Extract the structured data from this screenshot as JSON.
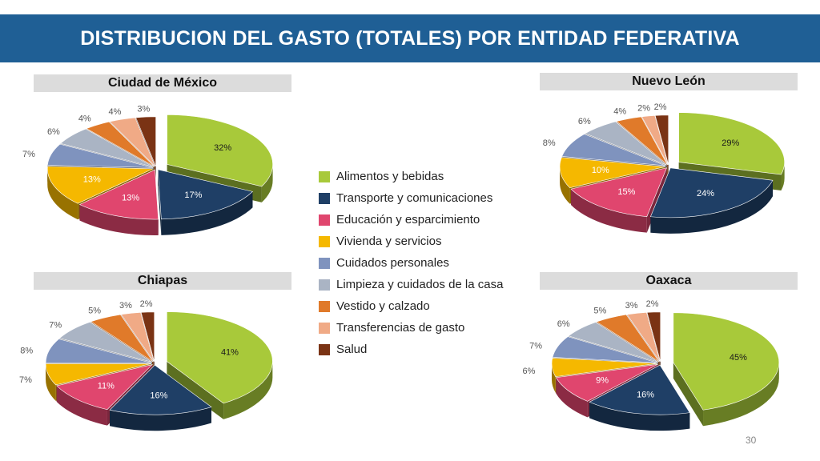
{
  "title": "DISTRIBUCION DEL GASTO (TOTALES) POR ENTIDAD FEDERATIVA",
  "page_number": "30",
  "categories": [
    "Alimentos y bebidas",
    "Transporte y comunicaciones",
    "Educación y esparcimiento",
    "Vivienda y servicios",
    "Cuidados personales",
    "Limpieza y cuidados de la casa",
    "Vestido y calzado",
    "Transferencias de gasto",
    "Salud"
  ],
  "colors": [
    "#a8c93a",
    "#1f3f66",
    "#e0466e",
    "#f5b800",
    "#7f93be",
    "#aab4c4",
    "#e07a2a",
    "#f0aa86",
    "#7a3314"
  ],
  "chart_data": [
    {
      "type": "pie",
      "title": "Ciudad de México",
      "values": [
        32,
        17,
        13,
        13,
        7,
        6,
        4,
        4,
        3
      ],
      "labels": [
        "32%",
        "17%",
        "13%",
        "13%",
        "7%",
        "6%",
        "4%",
        "4%",
        "3%"
      ]
    },
    {
      "type": "pie",
      "title": "Nuevo León",
      "values": [
        29,
        24,
        15,
        10,
        8,
        6,
        4,
        2,
        2
      ],
      "labels": [
        "29%",
        "24%",
        "15%",
        "10%",
        "8%",
        "6%",
        "4%",
        "2%",
        "2%"
      ]
    },
    {
      "type": "pie",
      "title": "Chiapas",
      "values": [
        41,
        16,
        11,
        7,
        8,
        7,
        5,
        3,
        2
      ],
      "labels": [
        "41%",
        "16%",
        "11%",
        "7%",
        "8%",
        "7%",
        "5%",
        "3%",
        "2%"
      ]
    },
    {
      "type": "pie",
      "title": "Oaxaca",
      "values": [
        45,
        16,
        9,
        6,
        7,
        6,
        5,
        3,
        2
      ],
      "labels": [
        "45%",
        "16%",
        "9%",
        "6%",
        "7%",
        "6%",
        "5%",
        "3%",
        "2%"
      ]
    }
  ]
}
